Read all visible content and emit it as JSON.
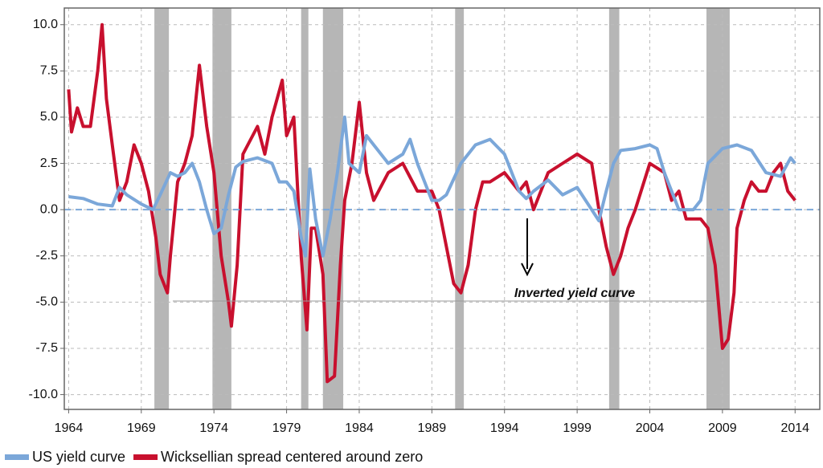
{
  "chart_data": {
    "type": "line",
    "xlim": [
      1963.7,
      2015.7
    ],
    "xticks": [
      1964,
      1969,
      1974,
      1979,
      1984,
      1989,
      1994,
      1999,
      2004,
      2009,
      2014
    ],
    "ylim": [
      -10.8,
      10.9
    ],
    "yticks": [
      {
        "value": 10,
        "label": "10.0"
      },
      7.5,
      {
        "value": 5,
        "label": "5.0"
      },
      2.5,
      {
        "value": 0,
        "label": "0.0"
      },
      -2.5,
      {
        "value": -5,
        "label": "-5.0"
      },
      -7.5,
      {
        "value": -10,
        "label": "-10.0"
      }
    ],
    "grid": true,
    "zero_line": true,
    "recessions": [
      [
        1969.9,
        1970.9
      ],
      [
        1973.9,
        1975.2
      ],
      [
        1980.0,
        1980.5
      ],
      [
        1981.5,
        1982.9
      ],
      [
        1990.6,
        1991.2
      ],
      [
        2001.2,
        2001.9
      ],
      [
        2007.9,
        2009.5
      ]
    ],
    "annotation": "Inverted yield curve",
    "series": [
      {
        "name": "US yield curve",
        "color": "#7ba7d9",
        "x": [
          1964,
          1965,
          1966,
          1967,
          1967.5,
          1968,
          1969,
          1969.8,
          1970.3,
          1971,
          1971.5,
          1972,
          1972.5,
          1973,
          1973.5,
          1974,
          1974.5,
          1975,
          1975.5,
          1976,
          1977,
          1978,
          1978.5,
          1979,
          1979.5,
          1980,
          1980.3,
          1980.6,
          1981,
          1981.5,
          1982,
          1982.5,
          1983,
          1983.3,
          1984,
          1984.5,
          1985,
          1986,
          1987,
          1987.5,
          1988,
          1989,
          1989.5,
          1990,
          1991,
          1992,
          1993,
          1994,
          1995,
          1995.5,
          1996,
          1997,
          1998,
          1999,
          2000,
          2000.5,
          2001,
          2001.5,
          2002,
          2003,
          2004,
          2004.5,
          2005,
          2006,
          2007,
          2007.5,
          2008,
          2009,
          2010,
          2011,
          2012,
          2013,
          2013.7,
          2014
        ],
        "values": [
          0.7,
          0.6,
          0.3,
          0.2,
          1.2,
          0.8,
          0.3,
          0.0,
          0.8,
          2.0,
          1.8,
          2.0,
          2.5,
          1.5,
          0.0,
          -1.3,
          -1.0,
          0.8,
          2.3,
          2.6,
          2.8,
          2.5,
          1.5,
          1.5,
          1.0,
          -1.5,
          -2.5,
          2.2,
          -0.5,
          -2.5,
          -0.5,
          2.0,
          5.0,
          2.5,
          2.0,
          4.0,
          3.5,
          2.5,
          3.0,
          3.8,
          2.5,
          0.5,
          0.5,
          0.8,
          2.5,
          3.5,
          3.8,
          3.0,
          1.0,
          0.6,
          1.0,
          1.6,
          0.8,
          1.2,
          0.0,
          -0.6,
          1.0,
          2.5,
          3.2,
          3.3,
          3.5,
          3.3,
          2.0,
          0.0,
          0.0,
          0.5,
          2.5,
          3.3,
          3.5,
          3.2,
          2.0,
          1.8,
          2.8,
          2.5
        ]
      },
      {
        "name": "Wicksellian spread centered around zero",
        "color": "#c8102e",
        "x": [
          1964,
          1964.2,
          1964.6,
          1965,
          1965.5,
          1966,
          1966.3,
          1966.6,
          1967,
          1967.5,
          1968,
          1968.5,
          1969,
          1969.5,
          1970,
          1970.3,
          1970.8,
          1971,
          1971.5,
          1972,
          1972.5,
          1973,
          1973.5,
          1974,
          1974.5,
          1975,
          1975.2,
          1975.6,
          1976,
          1977,
          1977.5,
          1978,
          1978.7,
          1979,
          1979.5,
          1980,
          1980.4,
          1980.7,
          1981,
          1981.5,
          1981.8,
          1982.3,
          1982.7,
          1983,
          1983.5,
          1984,
          1984.5,
          1985,
          1986,
          1987,
          1988,
          1989,
          1989.5,
          1990,
          1990.5,
          1991,
          1991.5,
          1992,
          1992.5,
          1993,
          1994,
          1995,
          1995.5,
          1996,
          1997,
          1998,
          1999,
          2000,
          2000.5,
          2001,
          2001.5,
          2002,
          2002.5,
          2003,
          2004,
          2005,
          2005.5,
          2006,
          2006.5,
          2007,
          2007.5,
          2008,
          2008.5,
          2009,
          2009.4,
          2009.8,
          2010,
          2010.5,
          2011,
          2011.5,
          2012,
          2012.5,
          2013,
          2013.5,
          2014
        ],
        "values": [
          6.5,
          4.2,
          5.5,
          4.5,
          4.5,
          7.5,
          10.0,
          6.0,
          3.5,
          0.5,
          1.5,
          3.5,
          2.5,
          1.0,
          -1.5,
          -3.5,
          -4.5,
          -2.5,
          1.5,
          2.5,
          4.0,
          7.8,
          4.5,
          2.0,
          -2.5,
          -5.0,
          -6.3,
          -3.0,
          3.0,
          4.5,
          3.0,
          5.0,
          7.0,
          4.0,
          5.0,
          -2.5,
          -6.5,
          -1.0,
          -1.0,
          -3.5,
          -9.3,
          -9.0,
          -3.0,
          0.5,
          2.5,
          5.8,
          2.0,
          0.5,
          2.0,
          2.5,
          1.0,
          1.0,
          0.0,
          -2.0,
          -4.0,
          -4.5,
          -3.0,
          0.0,
          1.5,
          1.5,
          2.0,
          1.0,
          1.5,
          0.0,
          2.0,
          2.5,
          3.0,
          2.5,
          0.0,
          -2.0,
          -3.5,
          -2.5,
          -1.0,
          0.0,
          2.5,
          2.0,
          0.5,
          1.0,
          -0.5,
          -0.5,
          -0.5,
          -1.0,
          -3.0,
          -7.5,
          -7.0,
          -4.5,
          -1.0,
          0.5,
          1.5,
          1.0,
          1.0,
          2.0,
          2.5,
          1.0,
          0.5
        ]
      }
    ]
  }
}
